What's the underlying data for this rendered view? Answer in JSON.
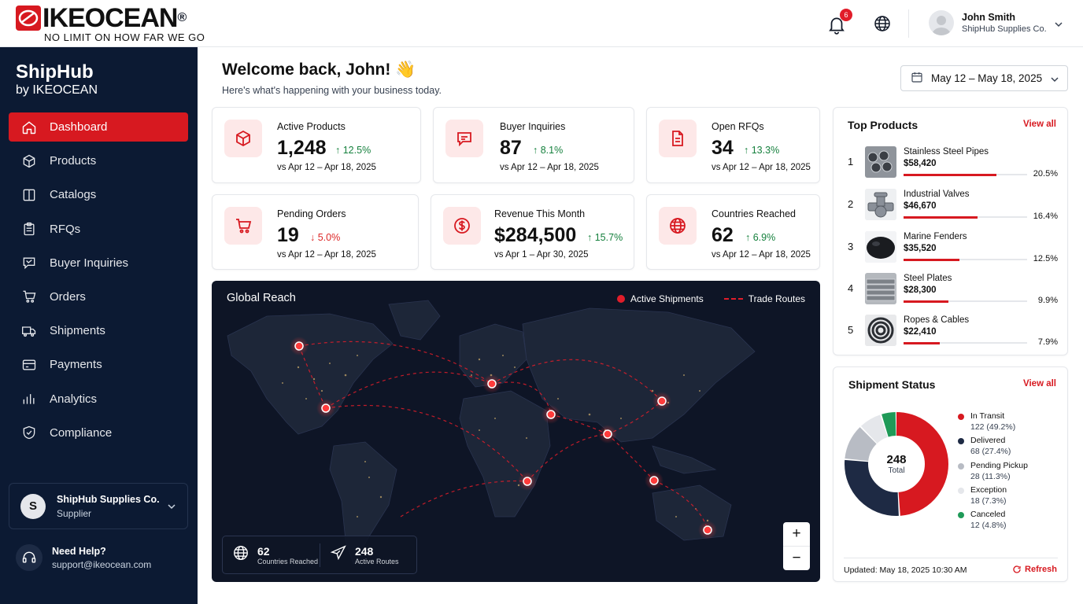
{
  "brand": {
    "logo_text": "IKEOCEAN",
    "logo_reg": "®",
    "tagline": "NO LIMIT ON HOW FAR WE GO"
  },
  "topbar": {
    "notification_count": "6",
    "user_name": "John Smith",
    "user_company": "ShipHub Supplies Co."
  },
  "sidebar": {
    "app_name": "ShipHub",
    "app_sub": "by IKEOCEAN",
    "items": [
      {
        "label": "Dashboard",
        "icon": "home-icon"
      },
      {
        "label": "Products",
        "icon": "box-icon"
      },
      {
        "label": "Catalogs",
        "icon": "book-icon"
      },
      {
        "label": "RFQs",
        "icon": "clipboard-icon"
      },
      {
        "label": "Buyer Inquiries",
        "icon": "chat-icon"
      },
      {
        "label": "Orders",
        "icon": "cart-icon"
      },
      {
        "label": "Shipments",
        "icon": "truck-icon"
      },
      {
        "label": "Payments",
        "icon": "credit-card-icon"
      },
      {
        "label": "Analytics",
        "icon": "bar-chart-icon"
      },
      {
        "label": "Compliance",
        "icon": "shield-check-icon"
      }
    ],
    "account": {
      "initial": "S",
      "name": "ShipHub Supplies Co.",
      "role": "Supplier"
    },
    "help": {
      "title": "Need Help?",
      "email": "support@ikeocean.com"
    }
  },
  "header": {
    "welcome": "Welcome back, John! 👋",
    "subtitle": "Here's what's happening with your business today.",
    "date_range": "May 12 – May 18, 2025"
  },
  "stats": [
    {
      "label": "Active Products",
      "value": "1,248",
      "delta": "12.5%",
      "direction": "up",
      "compare": "vs Apr 12 – Apr 18, 2025",
      "icon": "box-icon"
    },
    {
      "label": "Buyer Inquiries",
      "value": "87",
      "delta": "8.1%",
      "direction": "up",
      "compare": "vs Apr 12 – Apr 18, 2025",
      "icon": "chat-icon"
    },
    {
      "label": "Open RFQs",
      "value": "34",
      "delta": "13.3%",
      "direction": "up",
      "compare": "vs Apr 12 – Apr 18, 2025",
      "icon": "document-icon"
    },
    {
      "label": "Pending Orders",
      "value": "19",
      "delta": "5.0%",
      "direction": "down",
      "compare": "vs Apr 12 – Apr 18, 2025",
      "icon": "cart-icon"
    },
    {
      "label": "Revenue This Month",
      "value": "$284,500",
      "delta": "15.7%",
      "direction": "up",
      "compare": "vs Apr 1 – Apr 30, 2025",
      "icon": "dollar-icon"
    },
    {
      "label": "Countries Reached",
      "value": "62",
      "delta": "6.9%",
      "direction": "up",
      "compare": "vs Apr 12 – Apr 18, 2025",
      "icon": "globe-icon"
    }
  ],
  "map": {
    "title": "Global Reach",
    "legend_shipments": "Active Shipments",
    "legend_routes": "Trade Routes",
    "countries_value": "62",
    "countries_label": "Countries Reached",
    "routes_value": "248",
    "routes_label": "Active Routes",
    "zoom_in": "+",
    "zoom_out": "−"
  },
  "top_products": {
    "title": "Top Products",
    "link": "View all",
    "items": [
      {
        "rank": "1",
        "name": "Stainless Steel Pipes",
        "value": "$58,420",
        "pct": "20.5%",
        "share": 0.75
      },
      {
        "rank": "2",
        "name": "Industrial Valves",
        "value": "$46,670",
        "pct": "16.4%",
        "share": 0.6
      },
      {
        "rank": "3",
        "name": "Marine Fenders",
        "value": "$35,520",
        "pct": "12.5%",
        "share": 0.45
      },
      {
        "rank": "4",
        "name": "Steel Plates",
        "value": "$28,300",
        "pct": "9.9%",
        "share": 0.36
      },
      {
        "rank": "5",
        "name": "Ropes & Cables",
        "value": "$22,410",
        "pct": "7.9%",
        "share": 0.29
      }
    ]
  },
  "shipment_status": {
    "title": "Shipment Status",
    "link": "View all",
    "total": "248",
    "total_label": "Total",
    "items": [
      {
        "name": "In Transit",
        "value": "122 (49.2%)",
        "share": 49.2,
        "color": "#d71920"
      },
      {
        "name": "Delivered",
        "value": "68 (27.4%)",
        "share": 27.4,
        "color": "#1e2a44"
      },
      {
        "name": "Pending Pickup",
        "value": "28 (11.3%)",
        "share": 11.3,
        "color": "#b8bcc4"
      },
      {
        "name": "Exception",
        "value": "18 (7.3%)",
        "share": 7.3,
        "color": "#e5e7eb"
      },
      {
        "name": "Canceled",
        "value": "12 (4.8%)",
        "share": 4.8,
        "color": "#1f9a58"
      }
    ],
    "updated": "Updated: May 18, 2025 10:30 AM",
    "refresh": "Refresh"
  }
}
